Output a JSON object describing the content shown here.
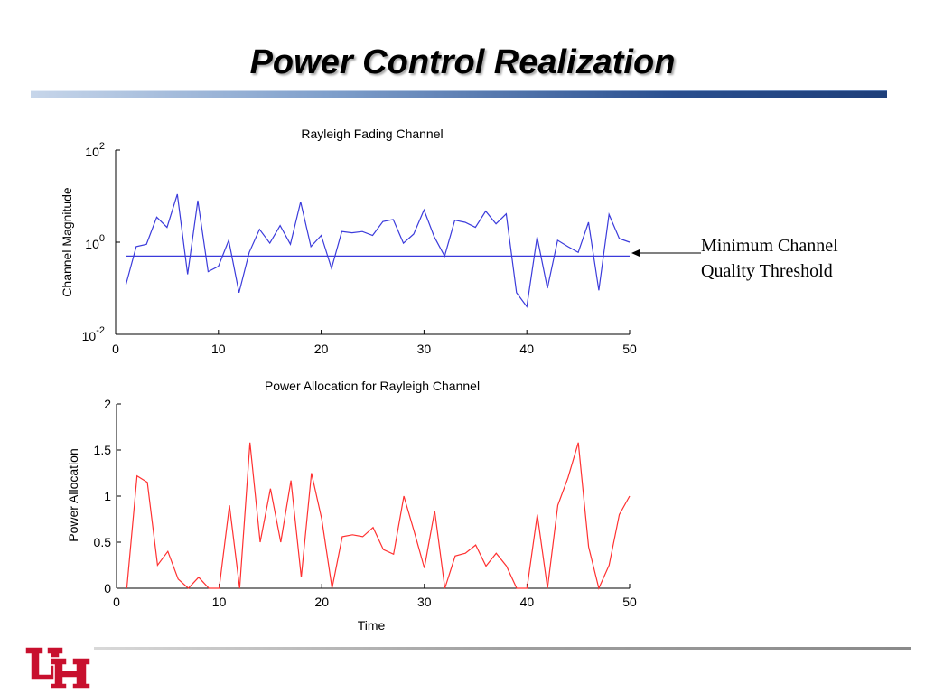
{
  "slide": {
    "title": "Power Control Realization",
    "accent_color": "#1e3f7a",
    "logo_color": "#c8102e",
    "logo_icon": "uh-logo-icon"
  },
  "chart_data": [
    {
      "type": "line",
      "title": "Rayleigh Fading Channel",
      "xlabel": "",
      "ylabel": "Channel Magnitude",
      "xlim": [
        0,
        50
      ],
      "ylim_log10": [
        -2,
        2
      ],
      "y_scale": "log",
      "x_ticks": [
        0,
        10,
        20,
        30,
        40,
        50
      ],
      "y_tick_bases": [
        "10",
        "10",
        "10"
      ],
      "y_tick_exponents": [
        "-2",
        "0",
        "2"
      ],
      "color": "#3b3bdb",
      "series": [
        {
          "x": [
            1,
            2,
            3,
            4,
            5,
            6,
            7,
            8,
            9,
            10,
            11,
            12,
            13,
            14,
            15,
            16,
            17,
            18,
            19,
            20,
            21,
            22,
            23,
            24,
            25,
            26,
            27,
            28,
            29,
            30,
            31,
            32,
            33,
            34,
            35,
            36,
            37,
            38,
            39,
            40,
            41,
            42,
            43,
            44,
            45,
            46,
            47,
            48,
            49,
            50
          ],
          "y": [
            0.12,
            0.8,
            0.9,
            3.5,
            2.1,
            11,
            0.2,
            8,
            0.23,
            0.3,
            1.1,
            0.08,
            0.6,
            1.9,
            0.95,
            2.3,
            0.9,
            7.5,
            0.8,
            1.4,
            0.27,
            1.7,
            1.6,
            1.7,
            1.4,
            2.8,
            3.1,
            0.95,
            1.5,
            5,
            1.3,
            0.5,
            3,
            2.7,
            2.1,
            4.7,
            2.5,
            4.1,
            0.08,
            0.04,
            1.3,
            0.1,
            1.1,
            0.8,
            0.6,
            2.7,
            0.09,
            4,
            1.2,
            1.0
          ]
        },
        {
          "x": [
            1,
            50
          ],
          "y": [
            0.5,
            0.5
          ]
        }
      ],
      "annotation": {
        "line1": "Minimum Channel",
        "line2": "Quality Threshold"
      }
    },
    {
      "type": "line",
      "title": "Power Allocation for Rayleigh Channel",
      "xlabel": "Time",
      "ylabel": "Power Allocation",
      "xlim": [
        0,
        50
      ],
      "ylim": [
        0,
        2
      ],
      "x_ticks": [
        0,
        10,
        20,
        30,
        40,
        50
      ],
      "y_ticks": [
        "0",
        "0.5",
        "1",
        "1.5",
        "2"
      ],
      "color": "#ff3030",
      "series": [
        {
          "x": [
            1,
            2,
            3,
            4,
            5,
            6,
            7,
            8,
            9,
            10,
            11,
            12,
            13,
            14,
            15,
            16,
            17,
            18,
            19,
            20,
            21,
            22,
            23,
            24,
            25,
            26,
            27,
            28,
            29,
            30,
            31,
            32,
            33,
            34,
            35,
            36,
            37,
            38,
            39,
            40,
            41,
            42,
            43,
            44,
            45,
            46,
            47,
            48,
            49,
            50
          ],
          "y": [
            0,
            1.22,
            1.15,
            0.25,
            0.4,
            0.1,
            0,
            0.12,
            0,
            0,
            0.9,
            0,
            1.58,
            0.5,
            1.08,
            0.5,
            1.17,
            0.12,
            1.25,
            0.75,
            0,
            0.56,
            0.58,
            0.56,
            0.66,
            0.42,
            0.37,
            1.0,
            0.62,
            0.22,
            0.84,
            0,
            0.35,
            0.38,
            0.47,
            0.24,
            0.38,
            0.24,
            0,
            0,
            0.8,
            0,
            0.9,
            1.2,
            1.58,
            0.45,
            0,
            0.25,
            0.8,
            1.0
          ]
        }
      ]
    }
  ]
}
